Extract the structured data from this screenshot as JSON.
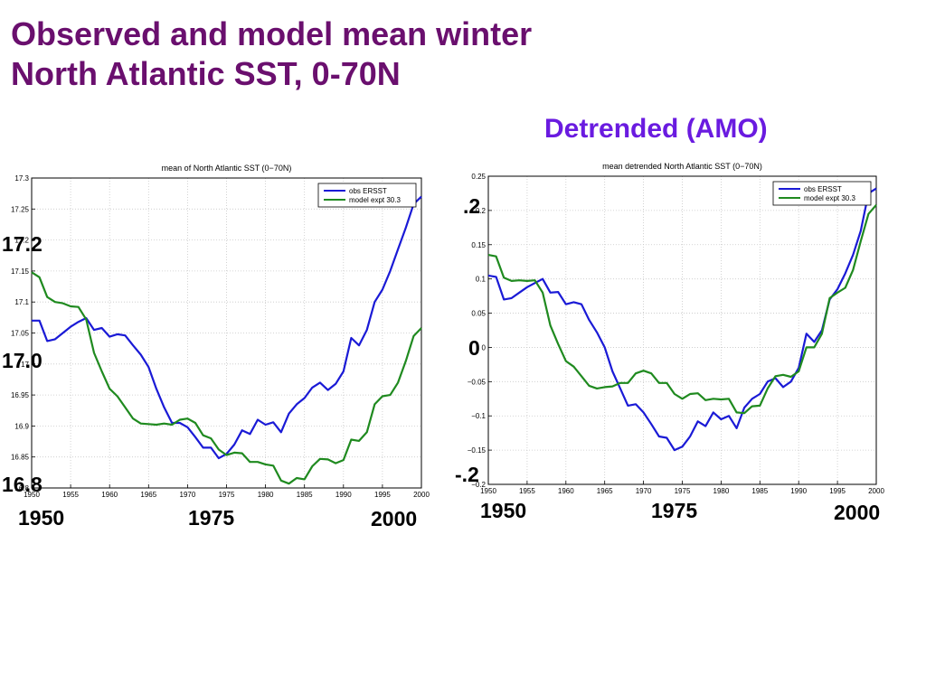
{
  "slide": {
    "title_line1": "Observed and model mean winter",
    "title_line2": "North Atlantic SST, 0-70N",
    "subtitle": "Detrended (AMO)"
  },
  "overlay_labels": {
    "left_y": [
      "17.2",
      "17.0",
      "16.8"
    ],
    "left_x": [
      "1950",
      "1975",
      "2000"
    ],
    "right_y": [
      ".2",
      "0",
      "-.2"
    ],
    "right_x": [
      "1950",
      "1975",
      "2000"
    ]
  },
  "colors": {
    "title": "#6a0f6e",
    "subtitle": "#6a1be0",
    "obs": "#1a1ad6",
    "model": "#1f8a1f"
  },
  "chart_data": [
    {
      "type": "line",
      "title": "mean of North Atlantic SST (0−70N)",
      "xlim": [
        1950,
        2000
      ],
      "ylim": [
        16.8,
        17.3
      ],
      "xticks": [
        "1950",
        "1955",
        "1960",
        "1965",
        "1970",
        "1975",
        "1980",
        "1985",
        "1990",
        "1995",
        "2000"
      ],
      "yticks": [
        "16.8",
        "16.85",
        "16.9",
        "16.95",
        "17",
        "17.05",
        "17.1",
        "17.15",
        "17.2",
        "17.25",
        "17.3"
      ],
      "grid": true,
      "legend": "top-right",
      "x": [
        1950,
        1951,
        1952,
        1953,
        1954,
        1955,
        1956,
        1957,
        1958,
        1959,
        1960,
        1961,
        1962,
        1963,
        1964,
        1965,
        1966,
        1967,
        1968,
        1969,
        1970,
        1971,
        1972,
        1973,
        1974,
        1975,
        1976,
        1977,
        1978,
        1979,
        1980,
        1981,
        1982,
        1983,
        1984,
        1985,
        1986,
        1987,
        1988,
        1989,
        1990,
        1991,
        1992,
        1993,
        1994,
        1995,
        1996,
        1997,
        1998,
        1999,
        2000
      ],
      "series": [
        {
          "name": "obs ERSST",
          "color": "#1a1ad6",
          "values": [
            17.07,
            17.07,
            17.037,
            17.04,
            17.05,
            17.06,
            17.068,
            17.074,
            17.055,
            17.058,
            17.044,
            17.048,
            17.046,
            17.03,
            17.015,
            16.995,
            16.96,
            16.93,
            16.905,
            16.905,
            16.898,
            16.882,
            16.865,
            16.865,
            16.848,
            16.855,
            16.87,
            16.893,
            16.887,
            16.91,
            16.902,
            16.906,
            16.89,
            16.92,
            16.935,
            16.945,
            16.962,
            16.97,
            16.958,
            16.968,
            16.988,
            17.042,
            17.03,
            17.055,
            17.1,
            17.12,
            17.15,
            17.185,
            17.22,
            17.258,
            17.27
          ]
        },
        {
          "name": "model expt 30.3",
          "color": "#1f8a1f",
          "values": [
            17.148,
            17.14,
            17.108,
            17.1,
            17.098,
            17.093,
            17.092,
            17.072,
            17.018,
            16.988,
            16.96,
            16.948,
            16.93,
            16.912,
            16.904,
            16.903,
            16.902,
            16.904,
            16.902,
            16.91,
            16.912,
            16.905,
            16.885,
            16.88,
            16.862,
            16.853,
            16.857,
            16.856,
            16.842,
            16.842,
            16.838,
            16.836,
            16.812,
            16.807,
            16.816,
            16.814,
            16.835,
            16.847,
            16.846,
            16.84,
            16.845,
            16.878,
            16.876,
            16.89,
            16.935,
            16.948,
            16.95,
            16.97,
            17.005,
            17.045,
            17.058
          ]
        }
      ]
    },
    {
      "type": "line",
      "title": "mean detrended North Atlantic SST (0−70N)",
      "xlim": [
        1950,
        2000
      ],
      "ylim": [
        -0.2,
        0.25
      ],
      "xticks": [
        "1950",
        "1955",
        "1960",
        "1965",
        "1970",
        "1975",
        "1980",
        "1985",
        "1990",
        "1995",
        "2000"
      ],
      "yticks": [
        "−0.2",
        "−0.15",
        "−0.1",
        "−0.05",
        "0",
        "0.05",
        "0.1",
        "0.15",
        "0.2",
        "0.25"
      ],
      "grid": true,
      "legend": "top-right",
      "x": [
        1950,
        1951,
        1952,
        1953,
        1954,
        1955,
        1956,
        1957,
        1958,
        1959,
        1960,
        1961,
        1962,
        1963,
        1964,
        1965,
        1966,
        1967,
        1968,
        1969,
        1970,
        1971,
        1972,
        1973,
        1974,
        1975,
        1976,
        1977,
        1978,
        1979,
        1980,
        1981,
        1982,
        1983,
        1984,
        1985,
        1986,
        1987,
        1988,
        1989,
        1990,
        1991,
        1992,
        1993,
        1994,
        1995,
        1996,
        1997,
        1998,
        1999,
        2000
      ],
      "series": [
        {
          "name": "obs ERSST",
          "color": "#1a1ad6",
          "values": [
            0.105,
            0.103,
            0.07,
            0.072,
            0.08,
            0.088,
            0.094,
            0.1,
            0.08,
            0.081,
            0.063,
            0.066,
            0.063,
            0.04,
            0.022,
            0.0,
            -0.035,
            -0.06,
            -0.085,
            -0.083,
            -0.095,
            -0.112,
            -0.13,
            -0.132,
            -0.15,
            -0.145,
            -0.13,
            -0.108,
            -0.115,
            -0.095,
            -0.105,
            -0.1,
            -0.118,
            -0.088,
            -0.075,
            -0.068,
            -0.05,
            -0.045,
            -0.058,
            -0.05,
            -0.03,
            0.02,
            0.008,
            0.025,
            0.07,
            0.085,
            0.108,
            0.135,
            0.17,
            0.225,
            0.232
          ]
        },
        {
          "name": "model expt 30.3",
          "color": "#1f8a1f",
          "values": [
            0.135,
            0.133,
            0.102,
            0.097,
            0.098,
            0.097,
            0.098,
            0.08,
            0.032,
            0.005,
            -0.02,
            -0.028,
            -0.042,
            -0.056,
            -0.06,
            -0.058,
            -0.057,
            -0.052,
            -0.052,
            -0.038,
            -0.034,
            -0.038,
            -0.052,
            -0.052,
            -0.068,
            -0.075,
            -0.068,
            -0.067,
            -0.077,
            -0.075,
            -0.076,
            -0.075,
            -0.095,
            -0.096,
            -0.086,
            -0.085,
            -0.06,
            -0.042,
            -0.04,
            -0.043,
            -0.035,
            0.0,
            0.0,
            0.02,
            0.072,
            0.08,
            0.087,
            0.113,
            0.155,
            0.195,
            0.208
          ]
        }
      ]
    }
  ]
}
